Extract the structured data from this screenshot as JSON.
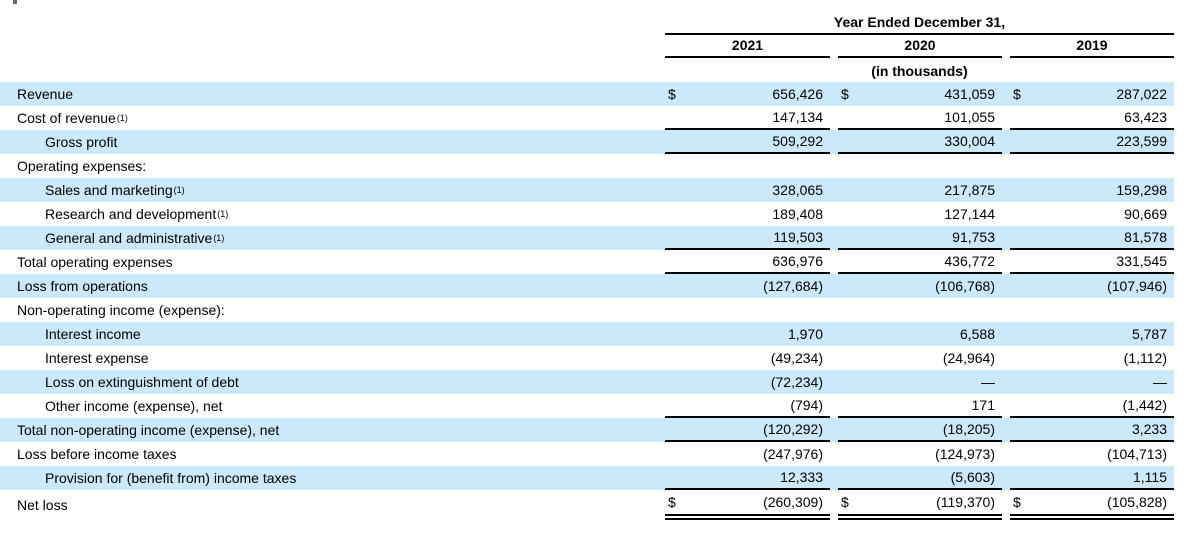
{
  "table": {
    "header": {
      "title": "Year Ended December 31,",
      "years": [
        "2021",
        "2020",
        "2019"
      ],
      "units_note": "(in thousands)"
    },
    "rows": [
      {
        "label": "Revenue",
        "sup": "",
        "indent": 0,
        "shaded": true,
        "dollar": true,
        "values": [
          "656,426",
          "431,059",
          "287,022"
        ],
        "rule": "none"
      },
      {
        "label": "Cost of revenue",
        "sup": "(1)",
        "indent": 0,
        "shaded": false,
        "dollar": false,
        "values": [
          "147,134",
          "101,055",
          "63,423"
        ],
        "rule": "single"
      },
      {
        "label": "Gross profit",
        "sup": "",
        "indent": 1,
        "shaded": true,
        "dollar": false,
        "values": [
          "509,292",
          "330,004",
          "223,599"
        ],
        "rule": "single"
      },
      {
        "label": "Operating expenses:",
        "sup": "",
        "indent": 0,
        "shaded": false,
        "dollar": false,
        "values": [
          "",
          "",
          ""
        ],
        "rule": "none"
      },
      {
        "label": "Sales and marketing",
        "sup": "(1)",
        "indent": 1,
        "shaded": true,
        "dollar": false,
        "values": [
          "328,065",
          "217,875",
          "159,298"
        ],
        "rule": "none"
      },
      {
        "label": "Research and development",
        "sup": "(1)",
        "indent": 1,
        "shaded": false,
        "dollar": false,
        "values": [
          "189,408",
          "127,144",
          "90,669"
        ],
        "rule": "none"
      },
      {
        "label": "General and administrative",
        "sup": "(1)",
        "indent": 1,
        "shaded": true,
        "dollar": false,
        "values": [
          "119,503",
          "91,753",
          "81,578"
        ],
        "rule": "single"
      },
      {
        "label": "Total operating expenses",
        "sup": "",
        "indent": 0,
        "shaded": false,
        "dollar": false,
        "values": [
          "636,976",
          "436,772",
          "331,545"
        ],
        "rule": "single"
      },
      {
        "label": "Loss from operations",
        "sup": "",
        "indent": 0,
        "shaded": true,
        "dollar": false,
        "values": [
          "(127,684)",
          "(106,768)",
          "(107,946)"
        ],
        "rule": "none"
      },
      {
        "label": "Non-operating income (expense):",
        "sup": "",
        "indent": 0,
        "shaded": false,
        "dollar": false,
        "values": [
          "",
          "",
          ""
        ],
        "rule": "none"
      },
      {
        "label": "Interest income",
        "sup": "",
        "indent": 1,
        "shaded": true,
        "dollar": false,
        "values": [
          "1,970",
          "6,588",
          "5,787"
        ],
        "rule": "none"
      },
      {
        "label": "Interest expense",
        "sup": "",
        "indent": 1,
        "shaded": false,
        "dollar": false,
        "values": [
          "(49,234)",
          "(24,964)",
          "(1,112)"
        ],
        "rule": "none"
      },
      {
        "label": "Loss on extinguishment of debt",
        "sup": "",
        "indent": 1,
        "shaded": true,
        "dollar": false,
        "values": [
          "(72,234)",
          "—",
          "—"
        ],
        "rule": "none"
      },
      {
        "label": "Other income (expense), net",
        "sup": "",
        "indent": 1,
        "shaded": false,
        "dollar": false,
        "values": [
          "(794)",
          "171",
          "(1,442)"
        ],
        "rule": "single"
      },
      {
        "label": "Total non-operating income (expense), net",
        "sup": "",
        "indent": 0,
        "shaded": true,
        "dollar": false,
        "values": [
          "(120,292)",
          "(18,205)",
          "3,233"
        ],
        "rule": "single"
      },
      {
        "label": "Loss before income taxes",
        "sup": "",
        "indent": 0,
        "shaded": false,
        "dollar": false,
        "values": [
          "(247,976)",
          "(124,973)",
          "(104,713)"
        ],
        "rule": "none"
      },
      {
        "label": "Provision for (benefit from) income taxes",
        "sup": "",
        "indent": 1,
        "shaded": true,
        "dollar": false,
        "values": [
          "12,333",
          "(5,603)",
          "1,115"
        ],
        "rule": "single"
      },
      {
        "label": "Net loss",
        "sup": "",
        "indent": 0,
        "shaded": false,
        "dollar": true,
        "values": [
          "(260,309)",
          "(119,370)",
          "(105,828)"
        ],
        "rule": "double",
        "tall": true
      }
    ]
  }
}
